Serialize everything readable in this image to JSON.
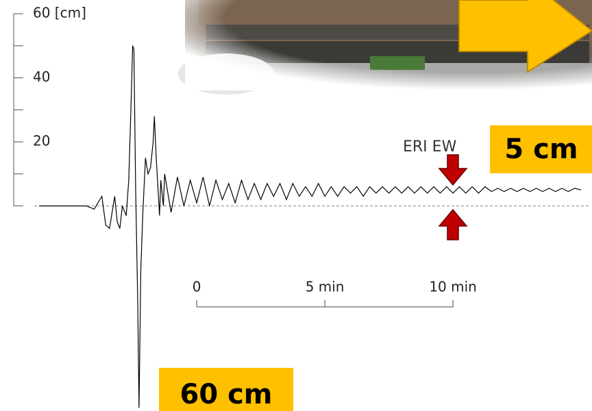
{
  "chart_data": {
    "type": "line",
    "annotations": {
      "station": "ERI EW",
      "offset": "5 cm",
      "peak": "60 cm"
    },
    "series": [
      {
        "color": "#000000",
        "x": [
          -6.15,
          -4.3,
          -4.0,
          -3.7,
          -3.55,
          -3.4,
          -3.3,
          -3.2,
          -3.1,
          -3.0,
          -2.9,
          -2.75,
          -2.65,
          -2.55,
          -2.5,
          -2.45,
          -2.38,
          -2.3,
          -2.25,
          -2.18,
          -2.1,
          -2.0,
          -1.9,
          -1.8,
          -1.7,
          -1.65,
          -1.58,
          -1.5,
          -1.45,
          -1.4,
          -1.3,
          -1.25,
          -1,
          -0.75,
          -0.5,
          -0.25,
          0,
          0.25,
          0.5,
          0.75,
          1,
          1.25,
          1.5,
          1.75,
          2,
          2.25,
          2.5,
          2.75,
          3,
          3.25,
          3.5,
          3.75,
          4,
          4.25,
          4.5,
          4.75,
          5,
          5.25,
          5.5,
          5.75,
          6,
          6.25,
          6.5,
          6.75,
          7,
          7.25,
          7.5,
          7.75,
          8,
          8.25,
          8.5,
          8.75,
          9,
          9.25,
          9.5,
          9.75,
          10,
          10.25,
          10.5,
          10.75,
          11,
          11.25,
          11.5,
          11.75,
          12,
          12.25,
          12.5,
          12.75,
          13,
          13.25,
          13.5,
          13.75,
          14,
          14.25,
          14.5,
          14.75,
          15
        ],
        "values": [
          0,
          0,
          -1,
          3,
          -6,
          -7,
          -2,
          3,
          -5,
          -7,
          0,
          -3,
          8,
          35,
          50,
          49,
          5,
          -30,
          -63,
          -20,
          -2,
          15,
          10,
          12,
          20,
          28,
          15,
          4,
          -3,
          8,
          0,
          10,
          -2,
          9,
          0,
          8,
          1,
          9,
          0,
          8,
          2,
          7,
          1,
          8,
          2,
          7,
          2,
          7,
          3,
          7,
          2,
          7,
          3,
          6,
          3,
          7,
          3,
          6,
          3,
          6,
          4,
          6,
          3,
          6,
          4,
          6,
          4,
          6,
          4,
          6,
          4,
          6,
          4,
          6,
          4,
          6,
          4,
          6,
          4,
          6,
          4,
          6,
          4.5,
          5.5,
          4.5,
          5.5,
          4.5,
          5.5,
          4.5,
          5.5,
          4.5,
          5.5,
          4.5,
          5.5,
          4.5,
          5.5,
          5
        ]
      }
    ],
    "xlim": [
      -7.14,
      15.05
    ],
    "xticks": [
      0,
      {
        "value": 5,
        "label": "5 min"
      },
      {
        "value": 10,
        "label": "10 min"
      }
    ],
    "ylim": [
      -64,
      60
    ],
    "yticks": [
      {
        "value": 60,
        "label": "60 [cm]"
      },
      40,
      20
    ],
    "yminor_ticks": [
      50,
      30,
      10,
      0
    ]
  }
}
